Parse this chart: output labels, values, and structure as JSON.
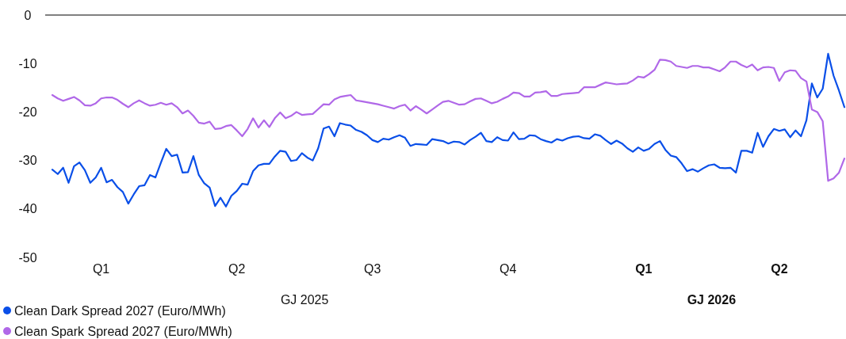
{
  "chart_data": {
    "type": "line",
    "ylim": [
      -50,
      0
    ],
    "yticks": [
      0,
      -10,
      -20,
      -30,
      -40,
      -50
    ],
    "categories": [
      null,
      null,
      null,
      null,
      null,
      null,
      null,
      null,
      null,
      "Q1",
      null,
      null,
      null,
      null,
      null,
      null,
      null,
      null,
      null,
      null,
      null,
      null,
      null,
      null,
      null,
      null,
      null,
      null,
      null,
      null,
      null,
      null,
      null,
      null,
      "Q2",
      null,
      null,
      null,
      null,
      null,
      null,
      null,
      null,
      null,
      null,
      null,
      null,
      null,
      null,
      null,
      null,
      null,
      null,
      null,
      null,
      null,
      null,
      null,
      null,
      "Q3",
      null,
      null,
      null,
      null,
      null,
      null,
      null,
      null,
      null,
      null,
      null,
      null,
      null,
      null,
      null,
      null,
      null,
      null,
      null,
      null,
      null,
      null,
      null,
      null,
      "Q4",
      null,
      null,
      null,
      null,
      null,
      null,
      null,
      null,
      null,
      null,
      null,
      null,
      null,
      null,
      null,
      null,
      null,
      null,
      null,
      null,
      null,
      null,
      null,
      null,
      "Q1",
      null,
      null,
      null,
      null,
      null,
      null,
      null,
      null,
      null,
      null,
      null,
      null,
      null,
      null,
      null,
      null,
      null,
      null,
      null,
      null,
      null,
      null,
      null,
      null,
      "Q2",
      null,
      null,
      null,
      null,
      null,
      null,
      null,
      null,
      null,
      null,
      null,
      null
    ],
    "annotations": [
      "GJ 2025",
      "GJ 2026"
    ],
    "ref_lines": [
      {
        "axis": "y",
        "value": 0,
        "color": "#000000"
      }
    ],
    "grid": false,
    "legend": "bottom left",
    "marker": "none",
    "line_style": "solid",
    "series": [
      {
        "name": "Clean Dark Spread 2027 (Euro/MWh)",
        "color": "#0a4fe8",
        "values": [
          -31.9,
          -32.8,
          -31.5,
          -34.6,
          -31.2,
          -30.4,
          -32.0,
          -34.6,
          -33.5,
          -31.5,
          -34.5,
          -34.0,
          -35.5,
          -36.5,
          -38.9,
          -37.0,
          -35.3,
          -35.1,
          -33.0,
          -33.5,
          -30.5,
          -27.6,
          -29.1,
          -28.8,
          -32.5,
          -32.4,
          -29.1,
          -33.0,
          -34.7,
          -35.6,
          -39.4,
          -37.7,
          -39.5,
          -37.3,
          -36.3,
          -34.8,
          -35.0,
          -32.2,
          -31.0,
          -30.7,
          -30.7,
          -29.2,
          -28.0,
          -28.2,
          -30.1,
          -29.9,
          -28.5,
          -29.4,
          -30.0,
          -27.5,
          -23.4,
          -23.0,
          -25.0,
          -22.3,
          -22.6,
          -22.8,
          -23.7,
          -24.1,
          -24.8,
          -25.8,
          -26.2,
          -25.5,
          -25.7,
          -25.2,
          -24.8,
          -25.3,
          -27.0,
          -26.6,
          -26.7,
          -26.8,
          -25.6,
          -25.8,
          -26.0,
          -26.5,
          -26.1,
          -26.2,
          -26.7,
          -25.8,
          -25.1,
          -24.3,
          -26.0,
          -26.2,
          -25.2,
          -25.8,
          -25.9,
          -24.2,
          -25.6,
          -25.5,
          -24.8,
          -24.9,
          -25.6,
          -26.0,
          -26.3,
          -25.6,
          -25.9,
          -25.4,
          -25.1,
          -25.0,
          -25.4,
          -25.5,
          -24.6,
          -24.9,
          -25.8,
          -26.6,
          -25.9,
          -26.5,
          -27.5,
          -28.2,
          -27.3,
          -28.0,
          -27.6,
          -26.6,
          -26.0,
          -27.8,
          -29.0,
          -29.3,
          -30.6,
          -32.2,
          -31.8,
          -32.3,
          -31.6,
          -31.0,
          -30.8,
          -31.5,
          -31.6,
          -31.5,
          -32.5,
          -28.0,
          -28.0,
          -28.4,
          -24.3,
          -27.2,
          -25.0,
          -23.5,
          -23.9,
          -23.6,
          -25.2,
          -23.8,
          -25.0,
          -21.7,
          -14.1,
          -17.0,
          -15.2,
          -8.0,
          -12.5,
          -15.6,
          -19.0
        ]
      },
      {
        "name": "Clean Spark Spread 2027 (Euro/MWh)",
        "color": "#b068e8",
        "values": [
          -16.5,
          -17.2,
          -17.7,
          -17.3,
          -16.9,
          -17.6,
          -18.6,
          -18.7,
          -18.2,
          -17.2,
          -17.0,
          -17.0,
          -17.5,
          -18.3,
          -19.0,
          -18.2,
          -17.6,
          -18.2,
          -18.7,
          -18.5,
          -18.1,
          -18.5,
          -18.2,
          -19.0,
          -20.3,
          -19.7,
          -20.8,
          -22.2,
          -22.4,
          -22.0,
          -23.5,
          -23.4,
          -22.9,
          -22.7,
          -23.8,
          -25.0,
          -23.5,
          -21.3,
          -23.2,
          -21.7,
          -23.1,
          -21.3,
          -20.1,
          -21.3,
          -20.8,
          -20.0,
          -20.6,
          -20.5,
          -20.4,
          -19.4,
          -18.4,
          -18.5,
          -17.4,
          -16.9,
          -16.7,
          -16.5,
          -17.6,
          -17.8,
          -18.0,
          -18.2,
          -18.4,
          -18.7,
          -19.0,
          -19.3,
          -18.8,
          -18.5,
          -19.7,
          -18.8,
          -19.5,
          -20.3,
          -19.5,
          -18.7,
          -17.9,
          -17.7,
          -18.1,
          -18.5,
          -18.4,
          -17.8,
          -17.3,
          -17.2,
          -17.7,
          -18.2,
          -17.9,
          -17.3,
          -16.8,
          -16.0,
          -16.1,
          -16.8,
          -16.8,
          -16.0,
          -15.9,
          -15.7,
          -16.7,
          -16.7,
          -16.3,
          -16.2,
          -16.1,
          -16.0,
          -14.9,
          -14.9,
          -14.9,
          -14.4,
          -13.9,
          -14.1,
          -14.3,
          -14.2,
          -14.1,
          -13.5,
          -12.7,
          -12.9,
          -12.2,
          -11.3,
          -9.2,
          -9.3,
          -9.6,
          -10.5,
          -10.7,
          -10.9,
          -10.5,
          -10.5,
          -10.8,
          -10.8,
          -11.2,
          -11.6,
          -10.8,
          -9.6,
          -9.6,
          -10.3,
          -10.8,
          -10.2,
          -11.4,
          -10.8,
          -10.7,
          -10.9,
          -13.6,
          -11.8,
          -11.4,
          -11.5,
          -13.0,
          -13.7,
          -19.5,
          -20.0,
          -21.9,
          -34.2,
          -33.7,
          -32.5,
          -29.6
        ]
      }
    ]
  }
}
